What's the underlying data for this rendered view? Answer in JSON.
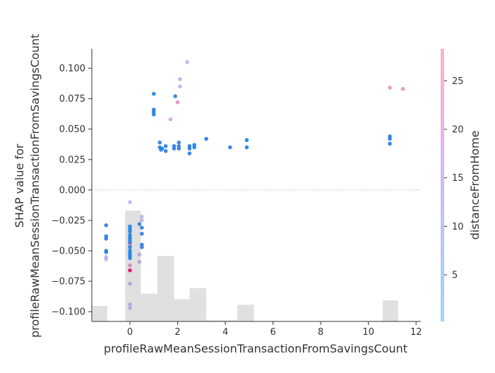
{
  "chart_data": {
    "type": "scatter",
    "title": "",
    "xlabel": "profileRawMeanSessionTransactionFromSavingsCount",
    "ylabel_line1": "SHAP value for",
    "ylabel_line2": "profileRawMeanSessionTransactionFromSavingsCount",
    "xlim": [
      -1.6,
      12.2
    ],
    "ylim": [
      -0.108,
      0.116
    ],
    "x_ticks": [
      0,
      2,
      4,
      6,
      8,
      10,
      12
    ],
    "y_ticks": [
      -0.1,
      -0.075,
      -0.05,
      -0.025,
      0.0,
      0.025,
      0.05,
      0.075,
      0.1
    ],
    "x_tick_labels": [
      "0",
      "2",
      "4",
      "6",
      "8",
      "10",
      "12"
    ],
    "y_tick_labels": [
      "−0.100",
      "−0.075",
      "−0.050",
      "−0.025",
      "0.000",
      "0.025",
      "0.050",
      "0.075",
      "0.100"
    ],
    "zero_line": 0.0,
    "colorbar": {
      "label": "distanceFromHome",
      "range": [
        0.2,
        28.3
      ],
      "ticks": [
        5,
        10,
        15,
        20,
        25
      ],
      "tick_labels": [
        "5",
        "10",
        "15",
        "20",
        "25"
      ]
    },
    "histogram": {
      "edges": [
        -1.6,
        -0.95,
        -0.2,
        0.45,
        1.15,
        1.85,
        2.5,
        3.2,
        3.85,
        4.5,
        5.2,
        5.9,
        6.55,
        7.25,
        7.9,
        8.55,
        9.25,
        9.9,
        10.6,
        11.25,
        11.95
      ],
      "heights": [
        0.14,
        0.0,
        1.0,
        0.25,
        0.59,
        0.2,
        0.3,
        0.01,
        0.01,
        0.15,
        0.0,
        0.0,
        0.0,
        0.0,
        0.0,
        0.0,
        0.0,
        0.0,
        0.19,
        0.0
      ],
      "color": "#e0e0e0"
    },
    "points": [
      {
        "x": -1.0,
        "y": -0.029,
        "c": 4
      },
      {
        "x": -1.0,
        "y": -0.038,
        "c": 3
      },
      {
        "x": -1.0,
        "y": -0.04,
        "c": 4
      },
      {
        "x": -1.0,
        "y": -0.05,
        "c": 1
      },
      {
        "x": -1.0,
        "y": -0.051,
        "c": 2
      },
      {
        "x": -1.0,
        "y": -0.055,
        "c": 9
      },
      {
        "x": -1.0,
        "y": -0.057,
        "c": 11
      },
      {
        "x": 0.0,
        "y": -0.01,
        "c": 12
      },
      {
        "x": 0.0,
        "y": -0.03,
        "c": 1
      },
      {
        "x": 0.0,
        "y": -0.032,
        "c": 1
      },
      {
        "x": 0.0,
        "y": -0.034,
        "c": 2
      },
      {
        "x": 0.0,
        "y": -0.037,
        "c": 1
      },
      {
        "x": 0.0,
        "y": -0.039,
        "c": 1
      },
      {
        "x": 0.0,
        "y": -0.041,
        "c": 1
      },
      {
        "x": 0.0,
        "y": -0.043,
        "c": 1
      },
      {
        "x": 0.0,
        "y": -0.045,
        "c": 22
      },
      {
        "x": 0.0,
        "y": -0.047,
        "c": 1
      },
      {
        "x": 0.0,
        "y": -0.05,
        "c": 1
      },
      {
        "x": 0.0,
        "y": -0.052,
        "c": 1
      },
      {
        "x": 0.0,
        "y": -0.054,
        "c": 1
      },
      {
        "x": 0.0,
        "y": -0.056,
        "c": 1
      },
      {
        "x": 0.0,
        "y": -0.062,
        "c": 22
      },
      {
        "x": 0.0,
        "y": -0.066,
        "c": 26
      },
      {
        "x": 0.0,
        "y": -0.077,
        "c": 14
      },
      {
        "x": 0.0,
        "y": -0.094,
        "c": 12
      },
      {
        "x": 0.0,
        "y": -0.097,
        "c": 13
      },
      {
        "x": 0.4,
        "y": -0.028,
        "c": 2
      },
      {
        "x": 0.5,
        "y": -0.022,
        "c": 11
      },
      {
        "x": 0.5,
        "y": -0.025,
        "c": 10
      },
      {
        "x": 0.5,
        "y": -0.031,
        "c": 4
      },
      {
        "x": 0.5,
        "y": -0.036,
        "c": 2
      },
      {
        "x": 0.5,
        "y": -0.045,
        "c": 2
      },
      {
        "x": 0.5,
        "y": -0.047,
        "c": 4
      },
      {
        "x": 0.4,
        "y": -0.053,
        "c": 10
      },
      {
        "x": 0.4,
        "y": -0.059,
        "c": 14
      },
      {
        "x": 1.0,
        "y": 0.079,
        "c": 1
      },
      {
        "x": 1.0,
        "y": 0.066,
        "c": 3
      },
      {
        "x": 1.0,
        "y": 0.064,
        "c": 1
      },
      {
        "x": 1.0,
        "y": 0.062,
        "c": 1
      },
      {
        "x": 1.25,
        "y": 0.039,
        "c": 4
      },
      {
        "x": 1.25,
        "y": 0.035,
        "c": 1
      },
      {
        "x": 1.3,
        "y": 0.033,
        "c": 4
      },
      {
        "x": 1.35,
        "y": 0.034,
        "c": 1
      },
      {
        "x": 1.5,
        "y": 0.036,
        "c": 1
      },
      {
        "x": 1.5,
        "y": 0.032,
        "c": 3
      },
      {
        "x": 1.85,
        "y": 0.036,
        "c": 3
      },
      {
        "x": 1.85,
        "y": 0.034,
        "c": 4
      },
      {
        "x": 1.9,
        "y": 0.077,
        "c": 4
      },
      {
        "x": 2.0,
        "y": 0.072,
        "c": 24
      },
      {
        "x": 1.7,
        "y": 0.058,
        "c": 18
      },
      {
        "x": 2.1,
        "y": 0.091,
        "c": 15
      },
      {
        "x": 2.1,
        "y": 0.085,
        "c": 16
      },
      {
        "x": 2.05,
        "y": 0.039,
        "c": 4
      },
      {
        "x": 2.05,
        "y": 0.036,
        "c": 3
      },
      {
        "x": 2.05,
        "y": 0.034,
        "c": 4
      },
      {
        "x": 2.4,
        "y": 0.105,
        "c": 11
      },
      {
        "x": 2.5,
        "y": 0.036,
        "c": 1
      },
      {
        "x": 2.5,
        "y": 0.034,
        "c": 2
      },
      {
        "x": 2.5,
        "y": 0.03,
        "c": 1
      },
      {
        "x": 2.7,
        "y": 0.037,
        "c": 1
      },
      {
        "x": 2.7,
        "y": 0.035,
        "c": 1
      },
      {
        "x": 3.2,
        "y": 0.042,
        "c": 2
      },
      {
        "x": 4.2,
        "y": 0.035,
        "c": 3
      },
      {
        "x": 4.9,
        "y": 0.041,
        "c": 1
      },
      {
        "x": 4.9,
        "y": 0.035,
        "c": 1
      },
      {
        "x": 10.9,
        "y": 0.084,
        "c": 24
      },
      {
        "x": 10.9,
        "y": 0.044,
        "c": 2
      },
      {
        "x": 10.9,
        "y": 0.042,
        "c": 1
      },
      {
        "x": 10.9,
        "y": 0.038,
        "c": 1
      },
      {
        "x": 11.45,
        "y": 0.083,
        "c": 23
      }
    ]
  }
}
